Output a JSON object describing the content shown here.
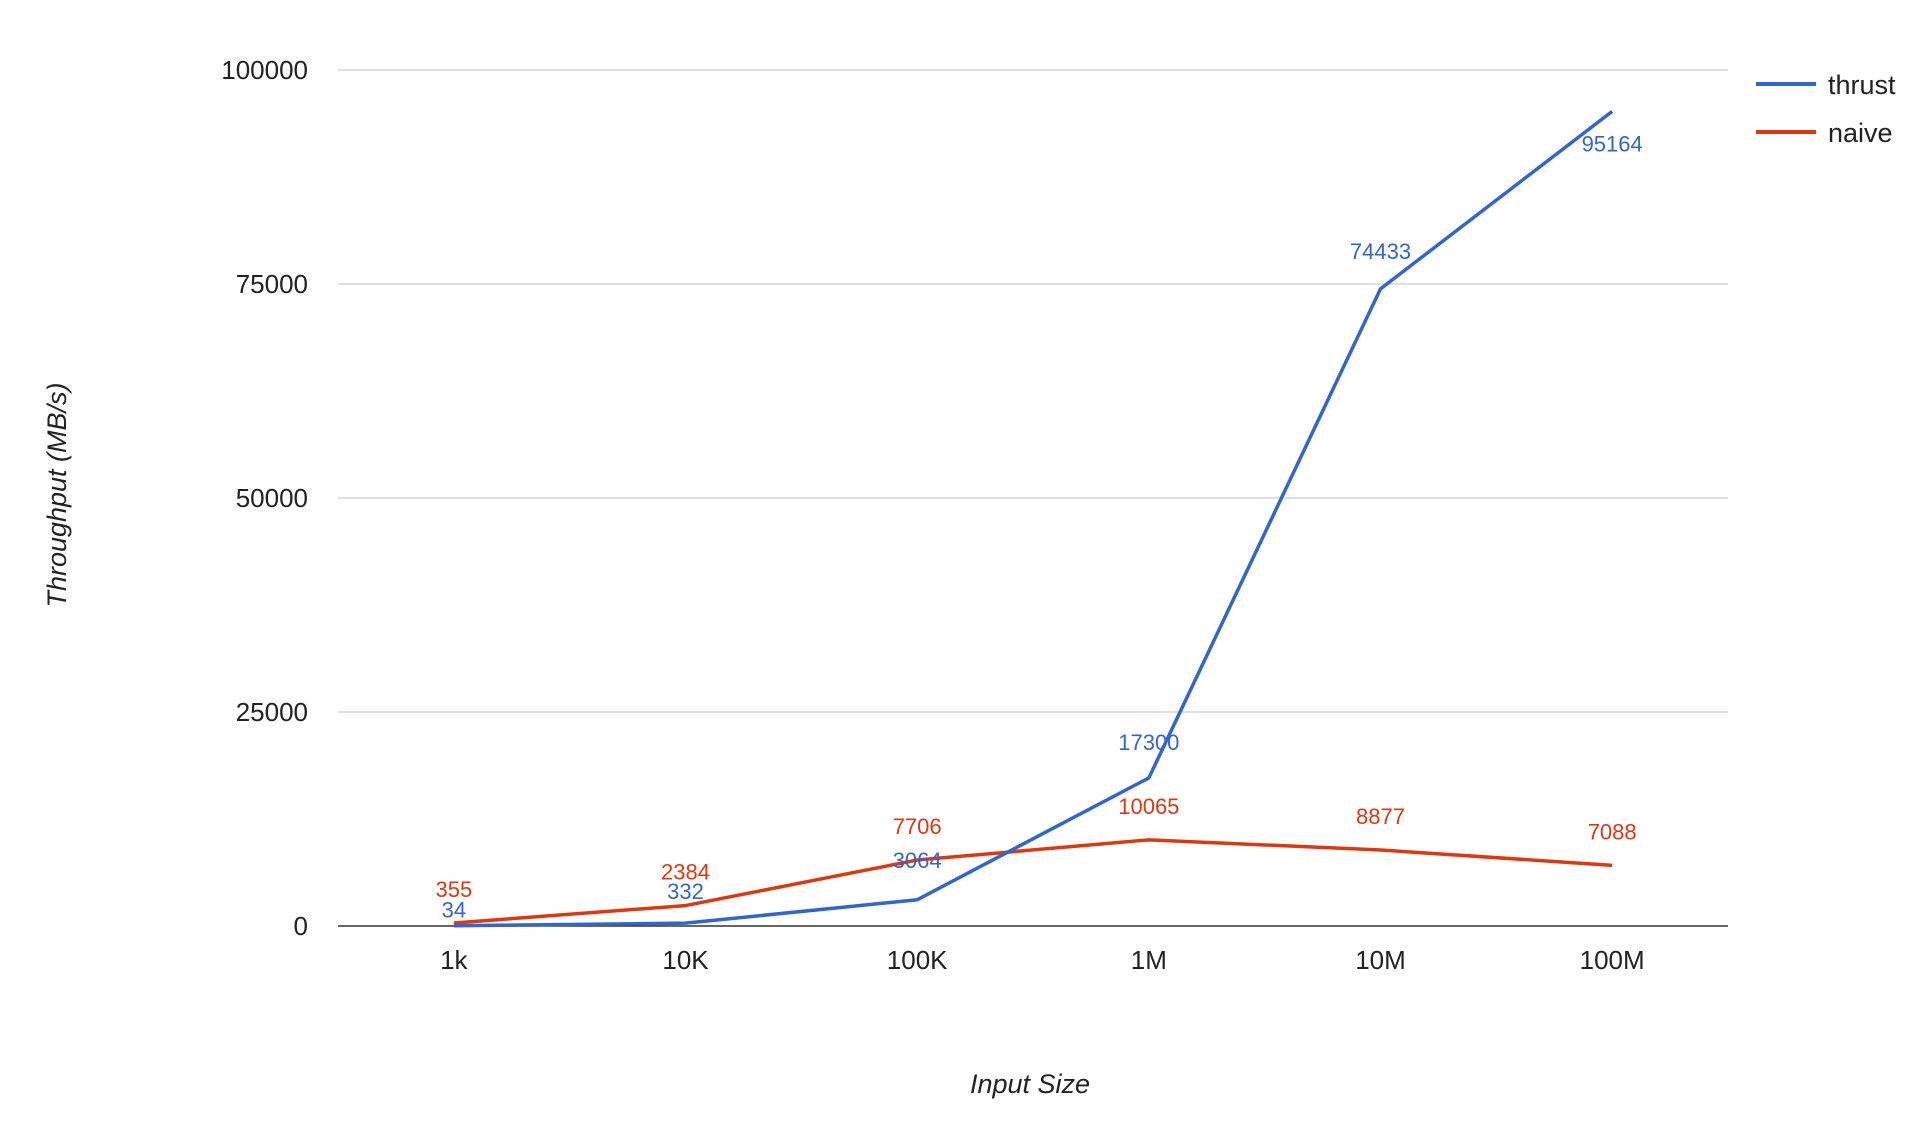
{
  "chart_data": {
    "type": "line",
    "xlabel": "Input Size",
    "ylabel": "Throughput (MB/s)",
    "categories": [
      "1k",
      "10K",
      "100K",
      "1M",
      "10M",
      "100M"
    ],
    "ylim": [
      0,
      100000
    ],
    "yticks": [
      "0",
      "25000",
      "50000",
      "75000",
      "100000"
    ],
    "grid": true,
    "legend_position": "top-right",
    "series": [
      {
        "name": "thrust",
        "color": "#3366cc",
        "values": [
          34,
          332,
          3064,
          17300,
          74433,
          95164
        ],
        "labels": [
          "34",
          "332",
          "3064",
          "17300",
          "74433",
          "95164"
        ]
      },
      {
        "name": "naive",
        "color": "#dc3912",
        "values": [
          355,
          2384,
          7706,
          10065,
          8877,
          7088
        ],
        "labels": [
          "355",
          "2384",
          "7706",
          "10065",
          "8877",
          "7088"
        ]
      }
    ]
  }
}
